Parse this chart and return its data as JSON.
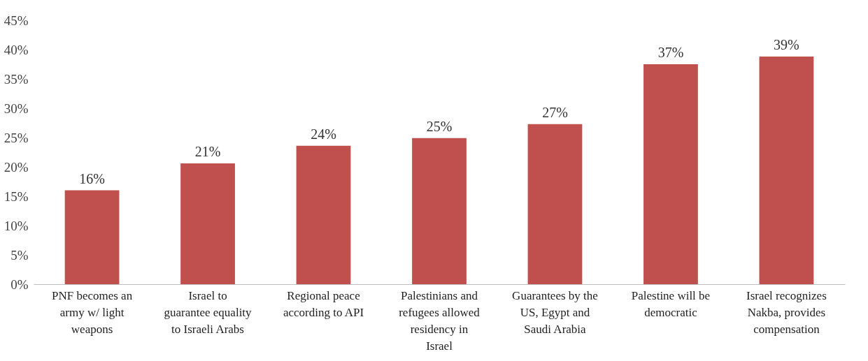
{
  "chart_data": {
    "type": "bar",
    "categories": [
      "PNF becomes an army w/ light weapons",
      "Israel to guarantee equality to Israeli Arabs",
      "Regional peace according to API",
      "Palestinians and refugees allowed residency in Israel",
      "Guarantees by the US, Egypt and Saudi Arabia",
      "Palestine will be democratic",
      "Israel recognizes Nakba, provides compensation"
    ],
    "values": [
      16,
      20.6,
      23.6,
      24.9,
      27.3,
      37.5,
      38.8
    ],
    "value_labels": [
      "16%",
      "21%",
      "24%",
      "25%",
      "27%",
      "37%",
      "39%"
    ],
    "color": "#c0504d",
    "ylim": [
      0,
      45
    ],
    "yticks": [
      {
        "value": 0,
        "label": "0%"
      },
      {
        "value": 5,
        "label": "5%"
      },
      {
        "value": 10,
        "label": "10%"
      },
      {
        "value": 15,
        "label": "15%"
      },
      {
        "value": 20,
        "label": "20%"
      },
      {
        "value": 25,
        "label": "25%"
      },
      {
        "value": 30,
        "label": "30%"
      },
      {
        "value": 35,
        "label": "35%"
      },
      {
        "value": 40,
        "label": "40%"
      },
      {
        "value": 45,
        "label": "45%"
      }
    ],
    "grid": false
  }
}
